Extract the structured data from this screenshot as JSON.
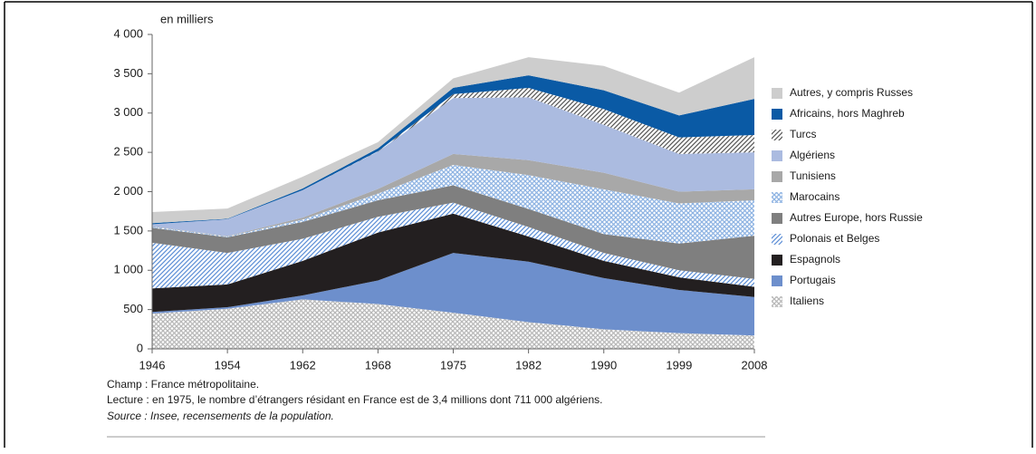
{
  "chart_data": {
    "type": "stacked_area",
    "y_label": "en milliers",
    "categories": [
      "1946",
      "1954",
      "1962",
      "1968",
      "1975",
      "1982",
      "1990",
      "1999",
      "2008"
    ],
    "ylim": [
      0,
      4000
    ],
    "yticks": [
      0,
      500,
      {
        "value": 1000,
        "label": "1 000"
      },
      {
        "value": 1500,
        "label": "1 500"
      },
      {
        "value": 2000,
        "label": "2 000"
      },
      {
        "value": 2500,
        "label": "2 500"
      },
      {
        "value": 3000,
        "label": "3 000"
      },
      {
        "value": 3500,
        "label": "3 500"
      },
      {
        "value": 4000,
        "label": "4 000"
      }
    ],
    "series": [
      {
        "name": "Italiens",
        "color": "#b8b8b8",
        "pattern": "crosshatch",
        "values": [
          450,
          510,
          630,
          570,
          460,
          340,
          250,
          200,
          170
        ]
      },
      {
        "name": "Portugais",
        "color": "#6d8fcc",
        "values": [
          20,
          20,
          50,
          300,
          760,
          770,
          650,
          550,
          490
        ]
      },
      {
        "name": "Espagnols",
        "color": "#231f20",
        "values": [
          300,
          290,
          440,
          610,
          500,
          320,
          220,
          160,
          130
        ]
      },
      {
        "name": "Polonais et Belges",
        "color": "#5b8ed6",
        "pattern": "hatch",
        "values": [
          580,
          400,
          280,
          200,
          140,
          120,
          100,
          90,
          100
        ]
      },
      {
        "name": "Autres Europe, hors Russie",
        "color": "#7f7f7f",
        "values": [
          190,
          200,
          215,
          210,
          220,
          230,
          240,
          340,
          550
        ]
      },
      {
        "name": "Marocains",
        "color": "#8fb4e3",
        "pattern": "crosshatch",
        "values": [
          15,
          10,
          30,
          85,
          260,
          430,
          570,
          510,
          450
        ]
      },
      {
        "name": "Tunisiens",
        "color": "#a8a8a8",
        "values": [
          5,
          5,
          25,
          60,
          140,
          190,
          210,
          150,
          140
        ]
      },
      {
        "name": "Algériens",
        "color": "#abbbe0",
        "values": [
          25,
          215,
          350,
          475,
          711,
          800,
          610,
          480,
          470
        ]
      },
      {
        "name": "Turcs",
        "color": "#555555",
        "pattern": "hatch",
        "values": [
          0,
          0,
          0,
          5,
          50,
          120,
          200,
          210,
          220
        ]
      },
      {
        "name": "Africains, hors Maghreb",
        "color": "#0a5aa5",
        "values": [
          15,
          5,
          20,
          35,
          80,
          160,
          240,
          280,
          460
        ]
      },
      {
        "name": "Autres, y compris Russes",
        "color": "#cdcdcd",
        "values": [
          140,
          130,
          150,
          80,
          120,
          230,
          310,
          290,
          530
        ]
      }
    ],
    "legend": "right",
    "notes": [
      "Champ : France métropolitaine.",
      "Lecture : en 1975, le nombre d’étrangers résidant en France est de 3,4 millions dont 711 000 algériens."
    ],
    "source": "Source : Insee, recensements de la population."
  }
}
